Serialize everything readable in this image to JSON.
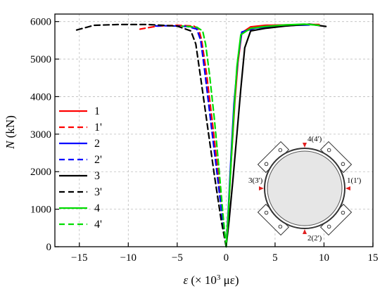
{
  "chart_data": {
    "type": "line",
    "xlabel_var": "ε",
    "xlabel_unit": "(× 10",
    "xlabel_sup": "3",
    "xlabel_tail": " με)",
    "ylabel_var": "N",
    "ylabel_unit": " (kN)",
    "xlim": [
      -17.5,
      15
    ],
    "ylim": [
      0,
      6200
    ],
    "xticks": [
      -15,
      -10,
      -5,
      0,
      5,
      10,
      15
    ],
    "yticks": [
      0,
      1000,
      2000,
      3000,
      4000,
      5000,
      6000
    ],
    "grid": true,
    "legend_position": "left",
    "series": [
      {
        "name": "1",
        "color": "#ff0000",
        "dash": "solid",
        "x": [
          0,
          0.2,
          0.5,
          0.9,
          1.2,
          1.6,
          2.5,
          4,
          6,
          8,
          9.5
        ],
        "y": [
          0,
          800,
          2200,
          3900,
          4900,
          5700,
          5860,
          5900,
          5910,
          5920,
          5920
        ]
      },
      {
        "name": "1'",
        "color": "#ff0000",
        "dash": "dashed",
        "x": [
          0,
          -0.3,
          -0.8,
          -1.4,
          -2.0,
          -2.5,
          -2.8,
          -3.3,
          -5,
          -7,
          -8.8
        ],
        "y": [
          0,
          700,
          1900,
          3300,
          4600,
          5500,
          5800,
          5880,
          5900,
          5880,
          5800
        ]
      },
      {
        "name": "2",
        "color": "#0000ff",
        "dash": "solid",
        "x": [
          0,
          0.2,
          0.5,
          0.8,
          1.2,
          1.6,
          3,
          5,
          7,
          8.5
        ],
        "y": [
          0,
          900,
          2400,
          3800,
          5000,
          5720,
          5830,
          5870,
          5900,
          5910
        ]
      },
      {
        "name": "2'",
        "color": "#0000ff",
        "dash": "dashed",
        "x": [
          0,
          -0.4,
          -1.0,
          -1.6,
          -2.2,
          -2.6,
          -3.0,
          -4,
          -6,
          -7.5
        ],
        "y": [
          0,
          800,
          2100,
          3400,
          4700,
          5500,
          5800,
          5870,
          5890,
          5880
        ]
      },
      {
        "name": "3",
        "color": "#000000",
        "dash": "solid",
        "x": [
          0,
          0.3,
          0.7,
          1.1,
          1.5,
          1.9,
          2.5,
          4,
          6,
          8.5,
          10.2
        ],
        "y": [
          0,
          700,
          1800,
          3000,
          4200,
          5300,
          5750,
          5820,
          5880,
          5930,
          5870
        ]
      },
      {
        "name": "3'",
        "color": "#000000",
        "dash": "dashed",
        "x": [
          0,
          -0.5,
          -1.2,
          -1.9,
          -2.6,
          -3.1,
          -3.6,
          -5,
          -8,
          -11,
          -13.5,
          -15.5
        ],
        "y": [
          0,
          700,
          1900,
          3200,
          4500,
          5400,
          5750,
          5880,
          5920,
          5920,
          5900,
          5760
        ]
      },
      {
        "name": "4",
        "color": "#00dd00",
        "dash": "solid",
        "x": [
          0,
          0.2,
          0.5,
          0.8,
          1.1,
          1.5,
          2.5,
          4,
          6,
          8,
          9.5
        ],
        "y": [
          0,
          800,
          2200,
          3600,
          4800,
          5650,
          5820,
          5870,
          5910,
          5930,
          5900
        ]
      },
      {
        "name": "4'",
        "color": "#00dd00",
        "dash": "dashed",
        "x": [
          0,
          -0.3,
          -0.7,
          -1.2,
          -1.7,
          -2.1,
          -2.4,
          -3.0,
          -4.5
        ],
        "y": [
          0,
          800,
          2000,
          3400,
          4600,
          5400,
          5750,
          5850,
          5880
        ]
      }
    ],
    "inset_labels": [
      "4(4')",
      "1(1')",
      "2(2')",
      "3(3')"
    ]
  }
}
